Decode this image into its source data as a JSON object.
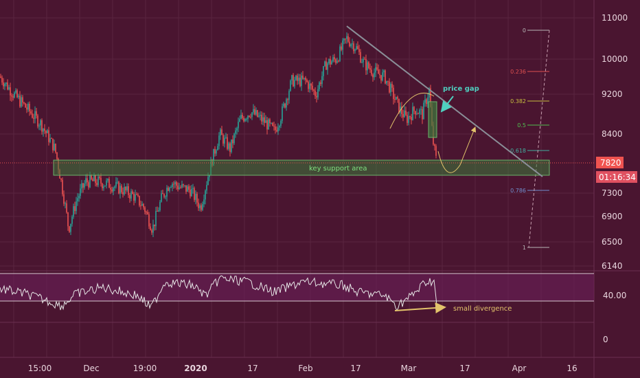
{
  "chart_data": [
    {
      "type": "candlestick",
      "title": "",
      "y_axis": {
        "ticks": [
          11000,
          10000,
          9200,
          8400,
          7300,
          6900,
          6500,
          6140
        ],
        "range": [
          6000,
          11150
        ]
      },
      "x_axis": {
        "ticks": [
          "15:00",
          "Dec",
          "19:00",
          "2020",
          "17",
          "Feb",
          "17",
          "Mar",
          "17",
          "Apr",
          "16"
        ]
      },
      "current_price": {
        "value": "7820",
        "countdown": "01:16:34"
      },
      "series": [
        {
          "x": "15:00",
          "y": 9100
        },
        {
          "x": "15:00",
          "y": 8800
        },
        {
          "x": "15:00",
          "y": 8500
        },
        {
          "x": "Dec",
          "y": 6700
        },
        {
          "x": "Dec",
          "y": 7600
        },
        {
          "x": "Dec",
          "y": 7300
        },
        {
          "x": "19:00",
          "y": 7200
        },
        {
          "x": "19:00",
          "y": 6700
        },
        {
          "x": "19:00",
          "y": 7300
        },
        {
          "x": "2020",
          "y": 7400
        },
        {
          "x": "2020",
          "y": 7100
        },
        {
          "x": "2020",
          "y": 8400
        },
        {
          "x": "17",
          "y": 8700
        },
        {
          "x": "17",
          "y": 8900
        },
        {
          "x": "17",
          "y": 8500
        },
        {
          "x": "Feb",
          "y": 9400
        },
        {
          "x": "Feb",
          "y": 9700
        },
        {
          "x": "Feb",
          "y": 10300
        },
        {
          "x": "17",
          "y": 10050
        },
        {
          "x": "17",
          "y": 9700
        },
        {
          "x": "17",
          "y": 8800
        },
        {
          "x": "Mar",
          "y": 8700
        },
        {
          "x": "Mar",
          "y": 9100
        },
        {
          "x": "Mar",
          "y": 7820
        }
      ],
      "annotations": {
        "support_label": "key support area",
        "gap_label": "price gap",
        "divergence_label": "small divergence"
      },
      "fib_levels": [
        {
          "label": "0",
          "color": "#b8b8b8"
        },
        {
          "label": "0.236",
          "color": "#e05050"
        },
        {
          "label": "0.382",
          "color": "#c8c040"
        },
        {
          "label": "0.5",
          "color": "#50c050"
        },
        {
          "label": "0.618",
          "color": "#40b0a0"
        },
        {
          "label": "0.786",
          "color": "#7090d0"
        },
        {
          "label": "1",
          "color": "#b8b8b8"
        }
      ]
    },
    {
      "type": "line",
      "title": "",
      "y_axis": {
        "ticks": [
          "40.00",
          "0"
        ]
      },
      "series": [
        {
          "x": "15:00",
          "y": 48
        },
        {
          "x": "Dec",
          "y": 36
        },
        {
          "x": "19:00",
          "y": 38
        },
        {
          "x": "2020",
          "y": 50
        },
        {
          "x": "17",
          "y": 46
        },
        {
          "x": "Feb",
          "y": 52
        },
        {
          "x": "17",
          "y": 50
        },
        {
          "x": "Mar",
          "y": 42
        },
        {
          "x": "Mar",
          "y": 33
        }
      ]
    }
  ],
  "colors": {
    "background": "#4a1530",
    "up_candle": "#26a69a",
    "down_candle": "#ef5350",
    "badge_price": "#ef5350",
    "badge_countdown": "#e05060",
    "rsi_line": "#e6e6e6",
    "trendline": "#8a8f98",
    "support_zone": "#3a7a3a",
    "gap_annotation": "#4fd0c0",
    "arrow_annotation": "#e3c46b"
  }
}
